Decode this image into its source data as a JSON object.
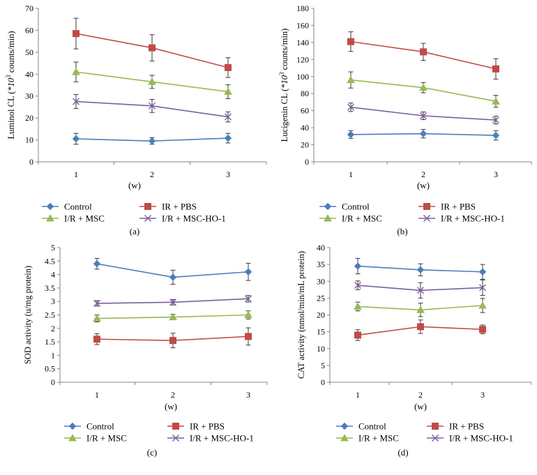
{
  "chart_data": [
    {
      "type": "line",
      "panel_label": "(a)",
      "ylabel_pre": "Luminol CL (",
      "ylabel_mid": "*10",
      "ylabel_sup": "3",
      "ylabel_post": " counts/min)",
      "xlabel": "(w)",
      "categories": [
        "1",
        "2",
        "3"
      ],
      "ylim": [
        0,
        70
      ],
      "yticks": [
        "0",
        "10",
        "20",
        "30",
        "40",
        "50",
        "60",
        "70"
      ],
      "series": [
        {
          "name": "Control",
          "color": "#4a7ebb",
          "marker": "diamond",
          "values": [
            10.5,
            9.5,
            10.8
          ],
          "errors": [
            2.5,
            1.5,
            2.2
          ]
        },
        {
          "name": "IR + PBS",
          "color": "#be4b48",
          "marker": "square",
          "values": [
            58.5,
            52.0,
            43.0
          ],
          "errors": [
            7.0,
            6.0,
            4.5
          ]
        },
        {
          "name": "I/R + MSC",
          "color": "#98b954",
          "marker": "triangle",
          "values": [
            41.0,
            36.5,
            32.0
          ],
          "errors": [
            4.5,
            3.0,
            3.2
          ]
        },
        {
          "name": "I/R + MSC-HO-1",
          "color": "#7d5fa0",
          "marker": "x",
          "values": [
            27.5,
            25.5,
            20.5
          ],
          "errors": [
            3.2,
            3.0,
            2.3
          ]
        }
      ]
    },
    {
      "type": "line",
      "panel_label": "(b)",
      "ylabel_pre": "Lucigenin CL (",
      "ylabel_mid": "*10",
      "ylabel_sup": "3",
      "ylabel_post": " counts/min)",
      "xlabel": "(w)",
      "categories": [
        "1",
        "2",
        "3"
      ],
      "ylim": [
        0,
        180
      ],
      "yticks": [
        "0",
        "20",
        "40",
        "60",
        "80",
        "100",
        "120",
        "140",
        "160",
        "180"
      ],
      "series": [
        {
          "name": "Control",
          "color": "#4a7ebb",
          "marker": "diamond",
          "values": [
            32,
            33,
            31
          ],
          "errors": [
            4.5,
            5,
            5.5
          ]
        },
        {
          "name": "IR + PBS",
          "color": "#be4b48",
          "marker": "square",
          "values": [
            141,
            129,
            109
          ],
          "errors": [
            11.5,
            10,
            12
          ]
        },
        {
          "name": "I/R + MSC",
          "color": "#98b954",
          "marker": "triangle",
          "values": [
            96,
            87,
            71
          ],
          "errors": [
            9.5,
            6,
            7
          ]
        },
        {
          "name": "I/R + MSC-HO-1",
          "color": "#7d5fa0",
          "marker": "x",
          "values": [
            64,
            54,
            49
          ],
          "errors": [
            5,
            4.5,
            4.5
          ]
        }
      ]
    },
    {
      "type": "line",
      "panel_label": "(c)",
      "ylabel": "SOD activity (u/mg protein)",
      "xlabel": "(w)",
      "categories": [
        "1",
        "2",
        "3"
      ],
      "ylim": [
        0,
        5
      ],
      "yticks": [
        "0",
        "0.5",
        "1",
        "1.5",
        "2",
        "2.5",
        "3",
        "3.5",
        "4",
        "4.5",
        "5"
      ],
      "series": [
        {
          "name": "Control",
          "color": "#4a7ebb",
          "marker": "diamond",
          "values": [
            4.4,
            3.9,
            4.1
          ],
          "errors": [
            0.2,
            0.26,
            0.32
          ]
        },
        {
          "name": "IR + PBS",
          "color": "#be4b48",
          "marker": "square",
          "values": [
            1.6,
            1.55,
            1.7
          ],
          "errors": [
            0.2,
            0.27,
            0.32
          ]
        },
        {
          "name": "I/R + MSC",
          "color": "#98b954",
          "marker": "triangle",
          "values": [
            2.37,
            2.42,
            2.5
          ],
          "errors": [
            0.13,
            0.1,
            0.15
          ]
        },
        {
          "name": "I/R + MSC-HO-1",
          "color": "#7d5fa0",
          "marker": "x",
          "values": [
            2.93,
            2.97,
            3.1
          ],
          "errors": [
            0.1,
            0.1,
            0.12
          ]
        }
      ]
    },
    {
      "type": "line",
      "panel_label": "(d)",
      "ylabel": "CAT activity (nmol/min/mL protein)",
      "xlabel": "(w)",
      "categories": [
        "1",
        "2",
        "3"
      ],
      "ylim": [
        0,
        40
      ],
      "yticks": [
        "0",
        "5",
        "10",
        "15",
        "20",
        "25",
        "30",
        "35",
        "40"
      ],
      "series": [
        {
          "name": "Control",
          "color": "#4a7ebb",
          "marker": "diamond",
          "values": [
            34.5,
            33.4,
            32.8
          ],
          "errors": [
            2.3,
            1.8,
            2.2
          ]
        },
        {
          "name": "IR + PBS",
          "color": "#be4b48",
          "marker": "square",
          "values": [
            14.0,
            16.5,
            15.7
          ],
          "errors": [
            1.6,
            2.0,
            1.3
          ]
        },
        {
          "name": "I/R + MSC",
          "color": "#98b954",
          "marker": "triangle",
          "values": [
            22.5,
            21.5,
            22.8
          ],
          "errors": [
            1.3,
            2.0,
            2.1
          ]
        },
        {
          "name": "I/R + MSC-HO-1",
          "color": "#7d5fa0",
          "marker": "x",
          "values": [
            28.8,
            27.3,
            28.1
          ],
          "errors": [
            1.3,
            2.3,
            2.3
          ]
        }
      ]
    }
  ]
}
